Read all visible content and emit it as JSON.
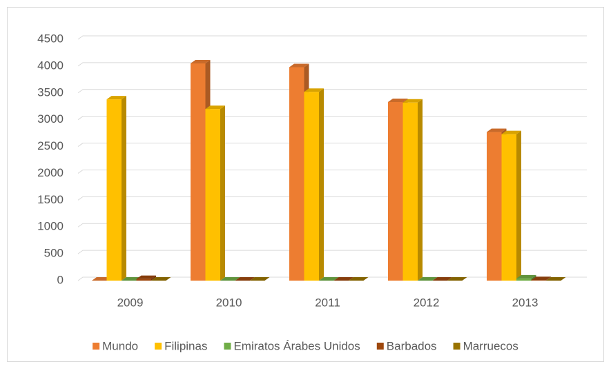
{
  "chart_data": {
    "type": "bar3d",
    "categories": [
      "2009",
      "2010",
      "2011",
      "2012",
      "2013"
    ],
    "series": [
      {
        "name": "Mundo",
        "color": "#ed7d31",
        "values": [
          0,
          4050,
          3980,
          3330,
          2770
        ]
      },
      {
        "name": "Filipinas",
        "color": "#ffc000",
        "values": [
          3380,
          3200,
          3520,
          3320,
          2730
        ]
      },
      {
        "name": "Emiratos Árabes Unidos",
        "color": "#70ad47",
        "values": [
          0,
          0,
          0,
          0,
          40
        ]
      },
      {
        "name": "Barbados",
        "color": "#9e480e",
        "values": [
          30,
          0,
          0,
          0,
          10
        ]
      },
      {
        "name": "Marruecos",
        "color": "#997300",
        "values": [
          0,
          0,
          0,
          0,
          0
        ]
      }
    ],
    "ylim": [
      0,
      4500
    ],
    "yticks": [
      0,
      500,
      1000,
      1500,
      2000,
      2500,
      3000,
      3500,
      4000,
      4500
    ],
    "grid": true,
    "legend": "bottom"
  }
}
